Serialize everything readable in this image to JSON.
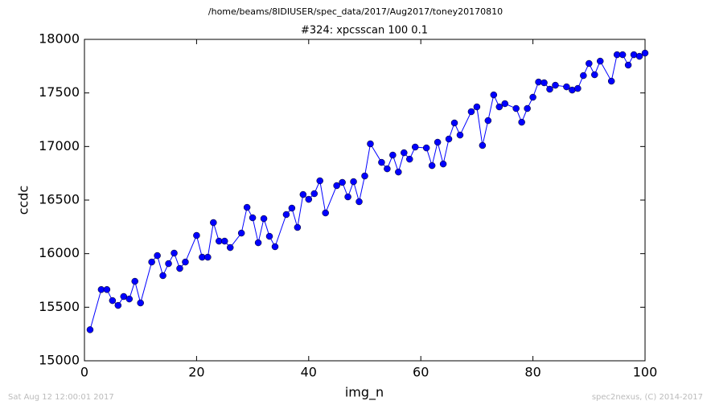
{
  "chart_data": {
    "type": "line",
    "suptitle": "/home/beams/8IDIUSER/spec_data/2017/Aug2017/toney20170810",
    "title": "#324: xpcsscan 100 0.1",
    "xlabel": "img_n",
    "ylabel": "ccdc",
    "footer_left": "Sat Aug 12 12:00:01 2017",
    "footer_right": "spec2nexus, (C) 2014-2017",
    "x": [
      1,
      3,
      4,
      5,
      6,
      7,
      8,
      9,
      10,
      12,
      13,
      14,
      15,
      16,
      17,
      18,
      20,
      21,
      22,
      23,
      24,
      25,
      26,
      28,
      29,
      30,
      31,
      32,
      33,
      34,
      36,
      37,
      38,
      39,
      40,
      41,
      42,
      43,
      45,
      46,
      47,
      48,
      49,
      50,
      51,
      53,
      54,
      55,
      56,
      57,
      58,
      59,
      61,
      62,
      63,
      64,
      65,
      66,
      67,
      69,
      70,
      71,
      72,
      73,
      74,
      75,
      77,
      78,
      79,
      80,
      81,
      82,
      83,
      84,
      86,
      87,
      88,
      89,
      90,
      91,
      92,
      94,
      95,
      96,
      97,
      98,
      99,
      100
    ],
    "series": [
      {
        "name": "ccdc",
        "color": "#0000ff",
        "values": [
          15290,
          15665,
          15665,
          15562,
          15517,
          15600,
          15577,
          15742,
          15540,
          15922,
          15982,
          15795,
          15907,
          16005,
          15862,
          15922,
          16170,
          15967,
          15967,
          16290,
          16117,
          16117,
          16057,
          16192,
          16432,
          16335,
          16102,
          16327,
          16162,
          16065,
          16365,
          16425,
          16245,
          16552,
          16507,
          16560,
          16680,
          16380,
          16635,
          16665,
          16530,
          16672,
          16485,
          16725,
          17025,
          16852,
          16792,
          16920,
          16762,
          16942,
          16882,
          16995,
          16987,
          16822,
          17040,
          16837,
          17070,
          17220,
          17107,
          17325,
          17370,
          17010,
          17242,
          17482,
          17370,
          17400,
          17355,
          17227,
          17355,
          17460,
          17602,
          17595,
          17535,
          17572,
          17557,
          17527,
          17542,
          17662,
          17775,
          17670,
          17797,
          17610,
          17857,
          17857,
          17760,
          17857,
          17842,
          17872
        ]
      }
    ],
    "xlim": [
      0,
      100
    ],
    "xticks": [
      0,
      20,
      40,
      60,
      80,
      100
    ],
    "ylim": [
      15000,
      18000
    ],
    "yticks": [
      15000,
      15500,
      16000,
      16500,
      17000,
      17500,
      18000
    ]
  }
}
